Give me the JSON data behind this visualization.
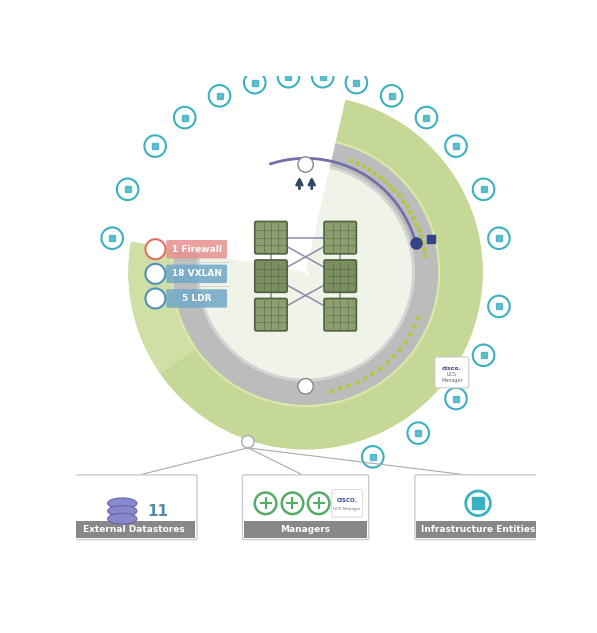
{
  "bg_color": "#ffffff",
  "outer_ring_color": "#c5d896",
  "inner_ring_fill": "#d8e8a8",
  "gray_ring_color": "#b8b8b8",
  "gray_ring_light": "#d0d0d0",
  "center_bg": "#f0f4e8",
  "icon_color": "#3ab0c0",
  "icon_bg": "#ffffff",
  "firewall_label": "1 Firewall",
  "vxlan_label": "18 VXLAN",
  "ldr_label": "5 LDR",
  "firewall_icon_color": "#e07060",
  "vxlan_icon_color": "#5090b8",
  "ldr_icon_color": "#5090b8",
  "firewall_bar_color": "#e89090",
  "vxlan_bar_color": "#70a8c8",
  "ldr_bar_color": "#70a8c8",
  "box1_label": "External Datastores",
  "box2_label": "Managers",
  "box3_label": "Infrastructure Entities",
  "node_color": "#8a9e6e",
  "node_border": "#6a7e4e",
  "node_dark": "#7a8e5e",
  "line_color": "#8888aa",
  "purple_arc_color": "#7070aa",
  "dot_color_green": "#b0c848",
  "dot_color_white": "#e8e8e8"
}
